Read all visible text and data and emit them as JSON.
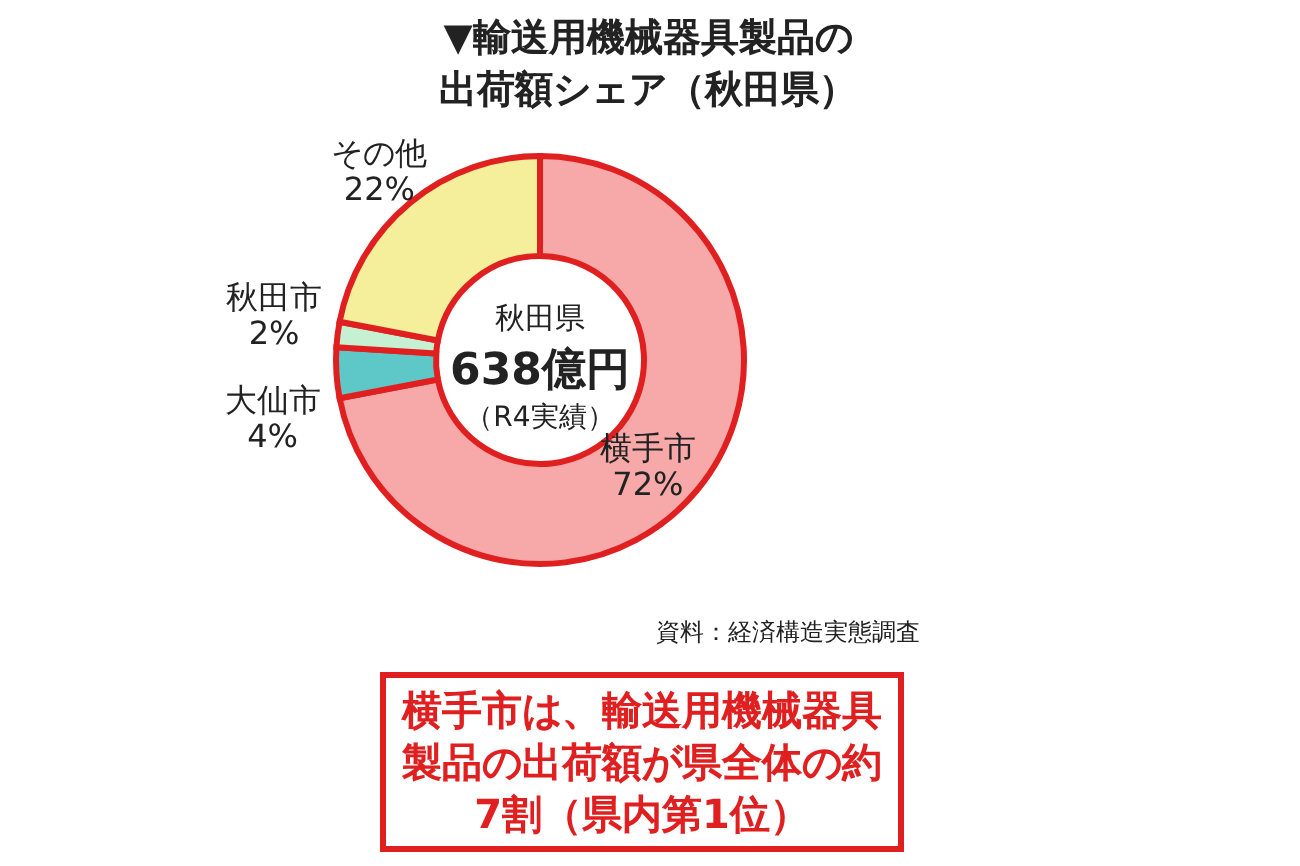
{
  "chart_data": {
    "type": "donut",
    "title": "▼輸送用機械器具製品の出荷額シェア（秋田県）",
    "categories": [
      "横手市",
      "大仙市",
      "秋田市",
      "その他"
    ],
    "values": [
      72,
      4,
      2,
      22
    ],
    "value_labels": [
      "72%",
      "4%",
      "2%",
      "22%"
    ],
    "colors": [
      "#f7a8a8",
      "#5ec8c8",
      "#c6f0d2",
      "#f5ef9c"
    ],
    "annotations": [
      "秋田県",
      "638億円",
      "（R4実績）",
      "資料：経済構造実態調査",
      "横手市は、輸送用機械器具製品の出荷額が県全体の約7割（県内第1位）"
    ]
  }
}
